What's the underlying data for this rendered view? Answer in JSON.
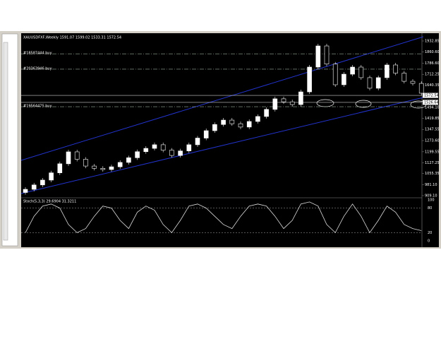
{
  "window": {
    "title": "XAUUSDFXF,Weekly 1591.07 1599.02 1533.31 1572.54"
  },
  "orders": [
    {
      "label": "#18587444 buy",
      "price": 1848
    },
    {
      "label": "#20363946 buy",
      "price": 1746
    },
    {
      "label": "#19564475 buy",
      "price": 1498
    }
  ],
  "price_axis": [
    {
      "value": 1932.85,
      "label": "1932.85"
    },
    {
      "value": 1860.6,
      "label": "1860.60"
    },
    {
      "value": 1786.6,
      "label": "1786.60"
    },
    {
      "value": 1712.25,
      "label": "1712.25"
    },
    {
      "value": 1640.35,
      "label": "1640.35"
    },
    {
      "value": 1494.1,
      "label": "1494.10"
    },
    {
      "value": 1419.85,
      "label": "1419.85"
    },
    {
      "value": 1347.55,
      "label": "1347.55"
    },
    {
      "value": 1273.6,
      "label": "1273.60"
    },
    {
      "value": 1199.55,
      "label": "1199.55"
    },
    {
      "value": 1127.25,
      "label": "1127.25"
    },
    {
      "value": 1055.35,
      "label": "1055.35"
    },
    {
      "value": 981.1,
      "label": "981.10"
    },
    {
      "value": 909.1,
      "label": "909.10"
    }
  ],
  "price_markers": [
    {
      "value": 1572.54,
      "label": "1572.54"
    },
    {
      "value": 1526.64,
      "label": "1526.64"
    }
  ],
  "candles": [
    [
      930,
      951
    ],
    [
      951,
      980
    ],
    [
      980,
      1012
    ],
    [
      1012,
      1060
    ],
    [
      1060,
      1120
    ],
    [
      1120,
      1199
    ],
    [
      1199,
      1150
    ],
    [
      1150,
      1105
    ],
    [
      1105,
      1090
    ],
    [
      1090,
      1082
    ],
    [
      1082,
      1100
    ],
    [
      1100,
      1129
    ],
    [
      1129,
      1160
    ],
    [
      1160,
      1200
    ],
    [
      1200,
      1222
    ],
    [
      1222,
      1246
    ],
    [
      1246,
      1210
    ],
    [
      1210,
      1175
    ],
    [
      1175,
      1205
    ],
    [
      1205,
      1246
    ],
    [
      1246,
      1290
    ],
    [
      1290,
      1339
    ],
    [
      1339,
      1380
    ],
    [
      1380,
      1409
    ],
    [
      1409,
      1385
    ],
    [
      1385,
      1363
    ],
    [
      1363,
      1400
    ],
    [
      1400,
      1433
    ],
    [
      1433,
      1480
    ],
    [
      1480,
      1550
    ],
    [
      1550,
      1530
    ],
    [
      1530,
      1512
    ],
    [
      1512,
      1596
    ],
    [
      1596,
      1760
    ],
    [
      1760,
      1900
    ],
    [
      1900,
      1780
    ],
    [
      1780,
      1643
    ],
    [
      1643,
      1713
    ],
    [
      1713,
      1760
    ],
    [
      1760,
      1690
    ],
    [
      1690,
      1620
    ],
    [
      1620,
      1690
    ],
    [
      1690,
      1774
    ],
    [
      1774,
      1720
    ],
    [
      1720,
      1666
    ],
    [
      1666,
      1652
    ],
    [
      1652,
      1587
    ]
  ],
  "indicator": {
    "title": "Stoch(5,3,3) 29.6904 31.3211",
    "ticks": [
      100,
      80,
      20,
      0
    ],
    "values": [
      20,
      60,
      85,
      90,
      80,
      40,
      20,
      30,
      60,
      85,
      80,
      50,
      30,
      70,
      85,
      75,
      40,
      20,
      50,
      85,
      90,
      80,
      60,
      40,
      30,
      60,
      85,
      90,
      85,
      60,
      30,
      50,
      90,
      95,
      85,
      40,
      20,
      60,
      90,
      60,
      20,
      50,
      85,
      70,
      40,
      30,
      25
    ]
  }
}
